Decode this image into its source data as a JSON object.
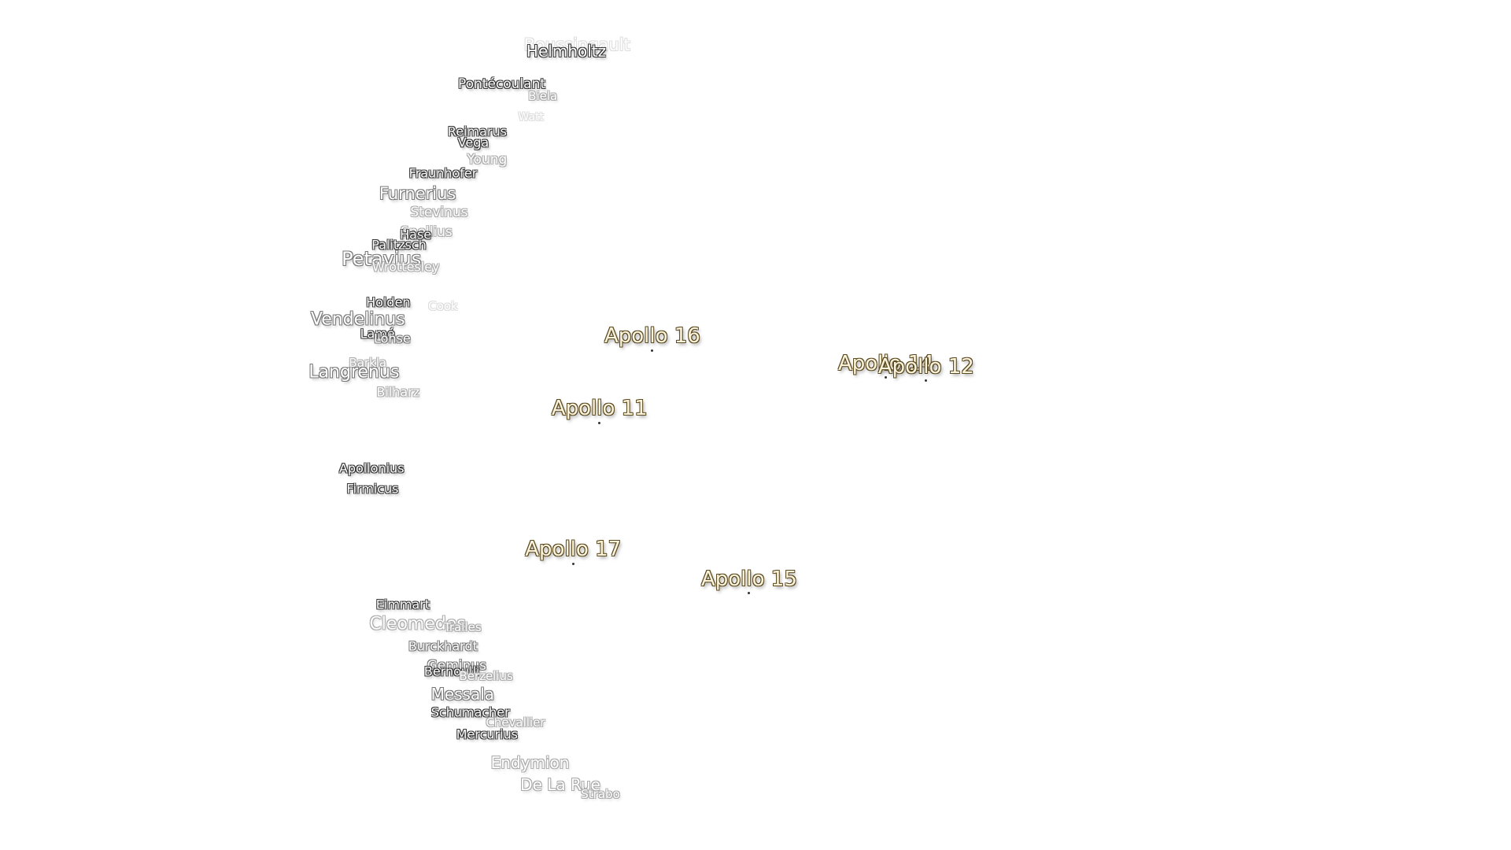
{
  "craters": [
    "Boussingault",
    "Helmholtz",
    "Pontécoulant",
    "Biela",
    "Watt",
    "Reimarus",
    "Vega",
    "Young",
    "Fraunhofer",
    "Furnerius",
    "Stevinus",
    "Snellius",
    "Hase",
    "Palitzsch",
    "Petavius",
    "Wrottesley",
    "Holden",
    "Cook",
    "Vendelinus",
    "Lamé",
    "Lohse",
    "Barkla",
    "Langrenus",
    "Bilharz",
    "Apollonius",
    "Firmicus",
    "Eimmart",
    "Cleomedes",
    "Tralles",
    "Burckhardt",
    "Geminus",
    "Bernoulli",
    "Berzelius",
    "Messala",
    "Schumacher",
    "Chevallier",
    "Mercurius",
    "Endymion",
    "De La Rue",
    "Strabo"
  ],
  "missions": [
    "Apollo 16",
    "Apollo 14",
    "Apollo 12",
    "Apollo 11",
    "Apollo 17",
    "Apollo 15"
  ]
}
